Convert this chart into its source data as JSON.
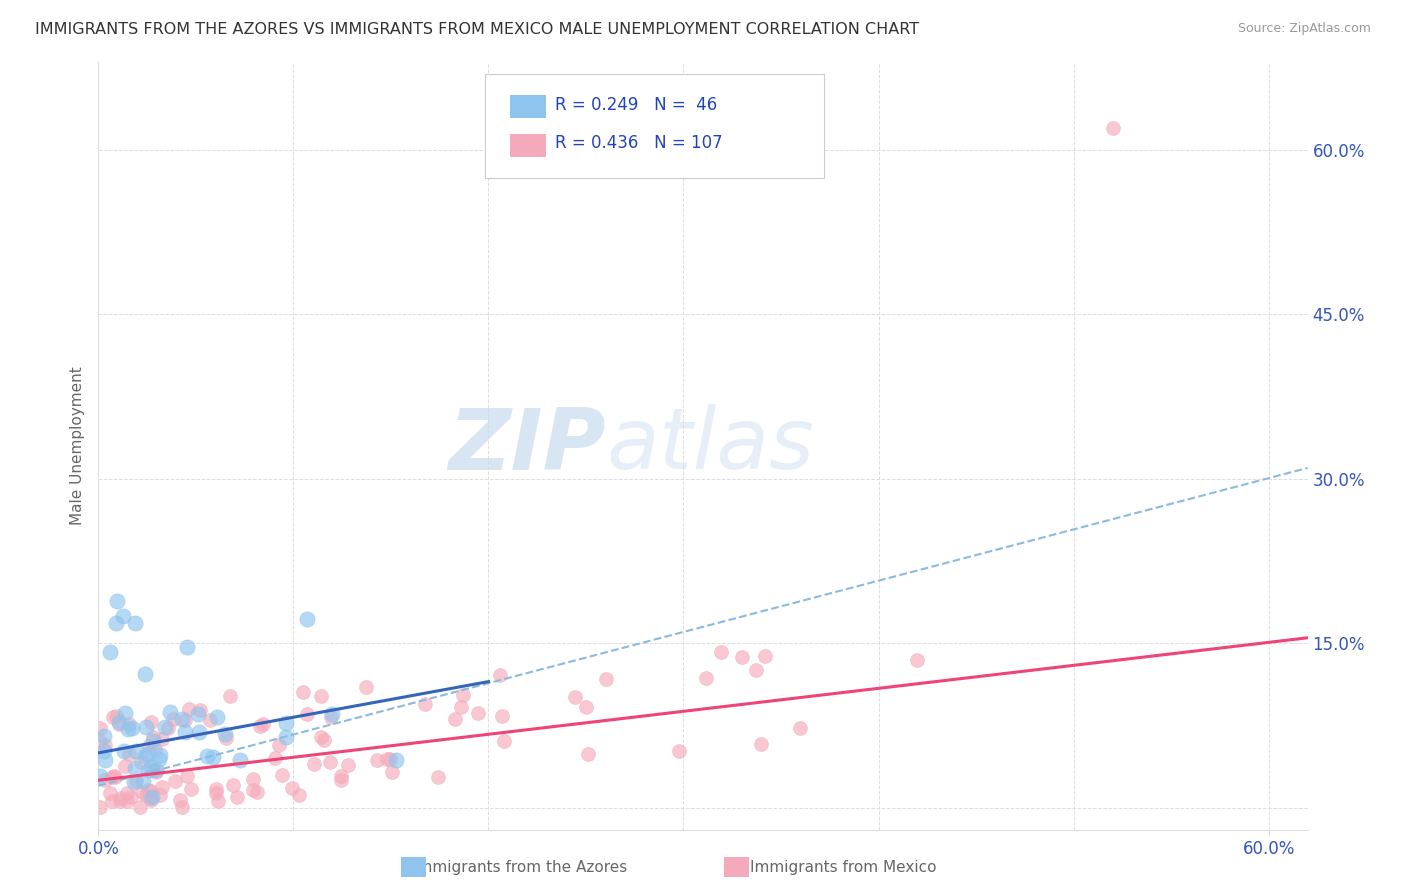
{
  "title": "IMMIGRANTS FROM THE AZORES VS IMMIGRANTS FROM MEXICO MALE UNEMPLOYMENT CORRELATION CHART",
  "source": "Source: ZipAtlas.com",
  "ylabel": "Male Unemployment",
  "watermark_zip": "ZIP",
  "watermark_atlas": "atlas",
  "xlim": [
    0.0,
    0.62
  ],
  "ylim": [
    -0.02,
    0.68
  ],
  "legend_label1": "Immigrants from the Azores",
  "legend_label2": "Immigrants from Mexico",
  "R1": 0.249,
  "N1": 46,
  "R2": 0.436,
  "N2": 107,
  "color_azores": "#8EC4EE",
  "color_mexico": "#F5AABB",
  "color_line_azores_solid": "#3366BB",
  "color_line_azores_dashed": "#88BBDD",
  "color_line_mexico": "#EE4477",
  "title_color": "#333333",
  "axis_label_color": "#666666",
  "tick_color": "#3355BB",
  "grid_color": "#DDDDDD",
  "background_color": "#FFFFFF",
  "legend_box_color": "#EEEEEE",
  "legend_text_color": "#2244BB"
}
